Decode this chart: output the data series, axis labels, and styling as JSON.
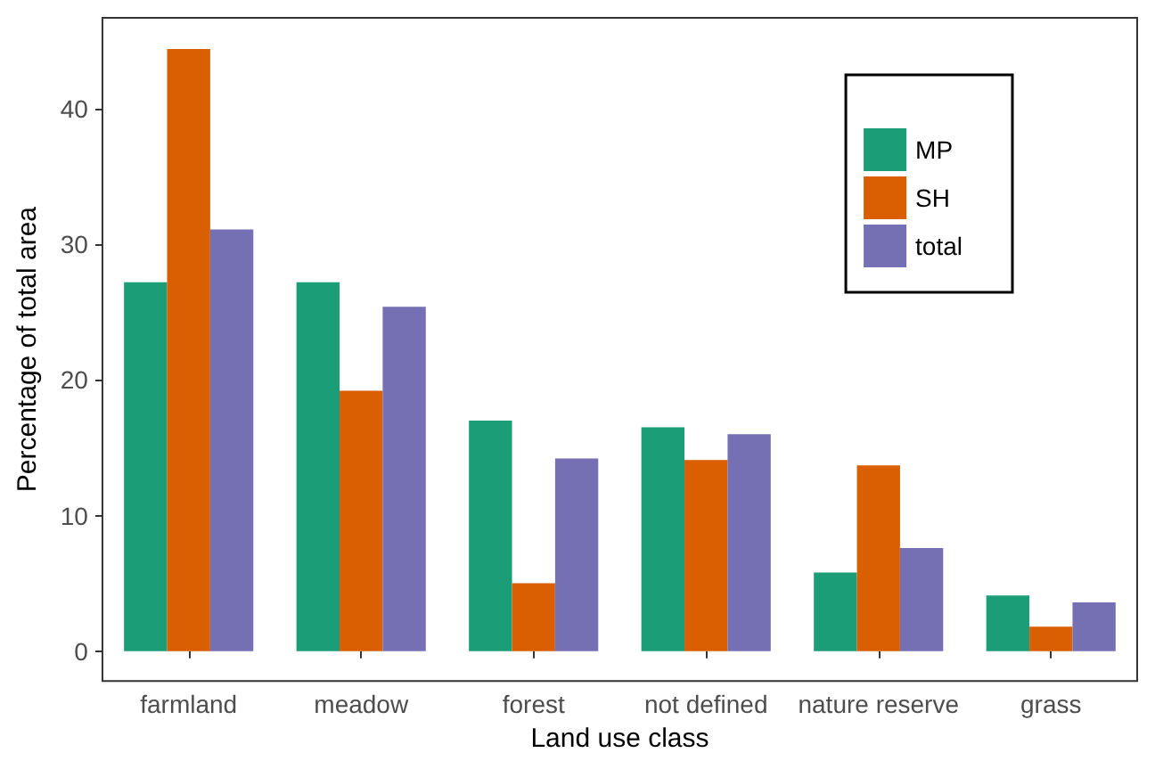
{
  "chart_data": {
    "type": "bar",
    "xlabel": "Land use class",
    "ylabel": "Percentage of total area",
    "categories": [
      "farmland",
      "meadow",
      "forest",
      "not defined",
      "nature reserve",
      "grass"
    ],
    "series": [
      {
        "name": "MP",
        "color": "#1b9e77",
        "values": [
          27.2,
          27.2,
          17.0,
          16.5,
          5.8,
          4.1
        ]
      },
      {
        "name": "SH",
        "color": "#d95f02",
        "values": [
          44.4,
          19.2,
          5.0,
          14.1,
          13.7,
          1.8
        ]
      },
      {
        "name": "total",
        "color": "#7570b3",
        "values": [
          31.1,
          25.4,
          14.2,
          16.0,
          7.6,
          3.6
        ]
      }
    ],
    "ylim": [
      -2.2,
      46.7
    ],
    "yticks": [
      0,
      10,
      20,
      30,
      40
    ],
    "grid": false,
    "legend": "top right"
  }
}
